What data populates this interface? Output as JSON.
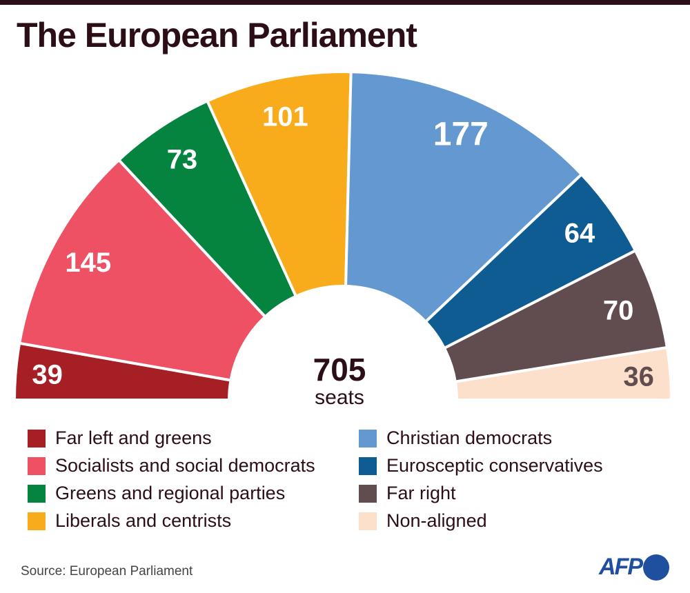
{
  "title": "The European Parliament",
  "source": "Source: European Parliament",
  "logo": "AFP",
  "chart_data": {
    "type": "pie",
    "subtype": "hemicycle",
    "total": {
      "value": "705",
      "unit": "seats"
    },
    "categories": [
      "Far left and greens",
      "Socialists and social democrats",
      "Greens and regional parties",
      "Liberals and centrists",
      "Christian democrats",
      "Eurosceptic conservatives",
      "Far right",
      "Non-aligned"
    ],
    "values": [
      39,
      145,
      73,
      101,
      177,
      64,
      70,
      36
    ],
    "colors": [
      "#a51f24",
      "#ee5064",
      "#04843f",
      "#f9ac1b",
      "#6399d0",
      "#0f5c93",
      "#614c4f",
      "#fde0cc"
    ],
    "label_colors": [
      "#ffffff",
      "#ffffff",
      "#ffffff",
      "#ffffff",
      "#ffffff",
      "#ffffff",
      "#ffffff",
      "#614c4f"
    ],
    "legend": "bottom"
  }
}
